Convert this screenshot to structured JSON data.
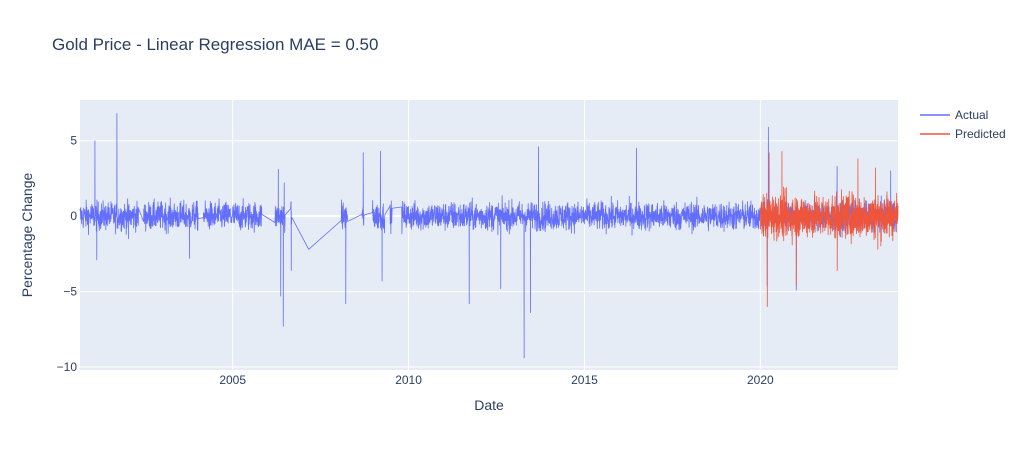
{
  "chart_data": {
    "type": "line",
    "title": "Gold Price - Linear Regression MAE = 0.50",
    "xlabel": "Date",
    "ylabel": "Percentage Change",
    "xlim": [
      "2000-08-30",
      "2023-11-30"
    ],
    "ylim": [
      -10.2,
      7.7
    ],
    "x_ticks": [
      "2005",
      "2010",
      "2015",
      "2020"
    ],
    "y_ticks": [
      5,
      0,
      -5,
      -10
    ],
    "y_tick_labels": [
      "5",
      "0",
      "−5",
      "−10"
    ],
    "grid": true,
    "legend_position": "top-right",
    "series": [
      {
        "name": "Actual",
        "color": "#636efa",
        "note_x_range": [
          "2000-08-30",
          "2023-11-30"
        ],
        "points": [
          [
            "2001-02-01",
            5.0
          ],
          [
            "2001-02-20",
            -2.9
          ],
          [
            "2001-09-17",
            6.8
          ],
          [
            "2002-01-15",
            -1.5
          ],
          [
            "2003-10-10",
            -2.8
          ],
          [
            "2006-04-20",
            3.1
          ],
          [
            "2006-05-15",
            -5.3
          ],
          [
            "2006-06-10",
            -7.3
          ],
          [
            "2006-06-20",
            2.2
          ],
          [
            "2006-09-01",
            -3.6
          ],
          [
            "2007-03-01",
            -2.2
          ],
          [
            "2008-03-20",
            -5.8
          ],
          [
            "2008-09-17",
            4.2
          ],
          [
            "2009-03-15",
            4.3
          ],
          [
            "2009-04-01",
            -4.3
          ],
          [
            "2011-09-23",
            -5.8
          ],
          [
            "2012-08-15",
            -4.8
          ],
          [
            "2013-04-15",
            -9.4
          ],
          [
            "2013-06-20",
            -6.4
          ],
          [
            "2013-09-10",
            4.6
          ],
          [
            "2016-06-24",
            4.5
          ],
          [
            "2020-03-12",
            -4.6
          ],
          [
            "2020-03-24",
            5.9
          ],
          [
            "2021-01-08",
            -4.9
          ],
          [
            "2022-03-08",
            3.3
          ],
          [
            "2023-09-15",
            3.0
          ]
        ]
      },
      {
        "name": "Predicted",
        "color": "#ef553b",
        "note_x_range": [
          "2020-01-02",
          "2023-11-30"
        ],
        "points": [
          [
            "2020-03-13",
            -6.0
          ],
          [
            "2020-04-01",
            4.2
          ],
          [
            "2020-08-12",
            4.3
          ],
          [
            "2021-01-08",
            -4.6
          ],
          [
            "2022-03-09",
            -3.6
          ],
          [
            "2022-10-10",
            3.8
          ],
          [
            "2023-04-10",
            3.2
          ],
          [
            "2023-05-05",
            -2.2
          ]
        ]
      }
    ]
  }
}
